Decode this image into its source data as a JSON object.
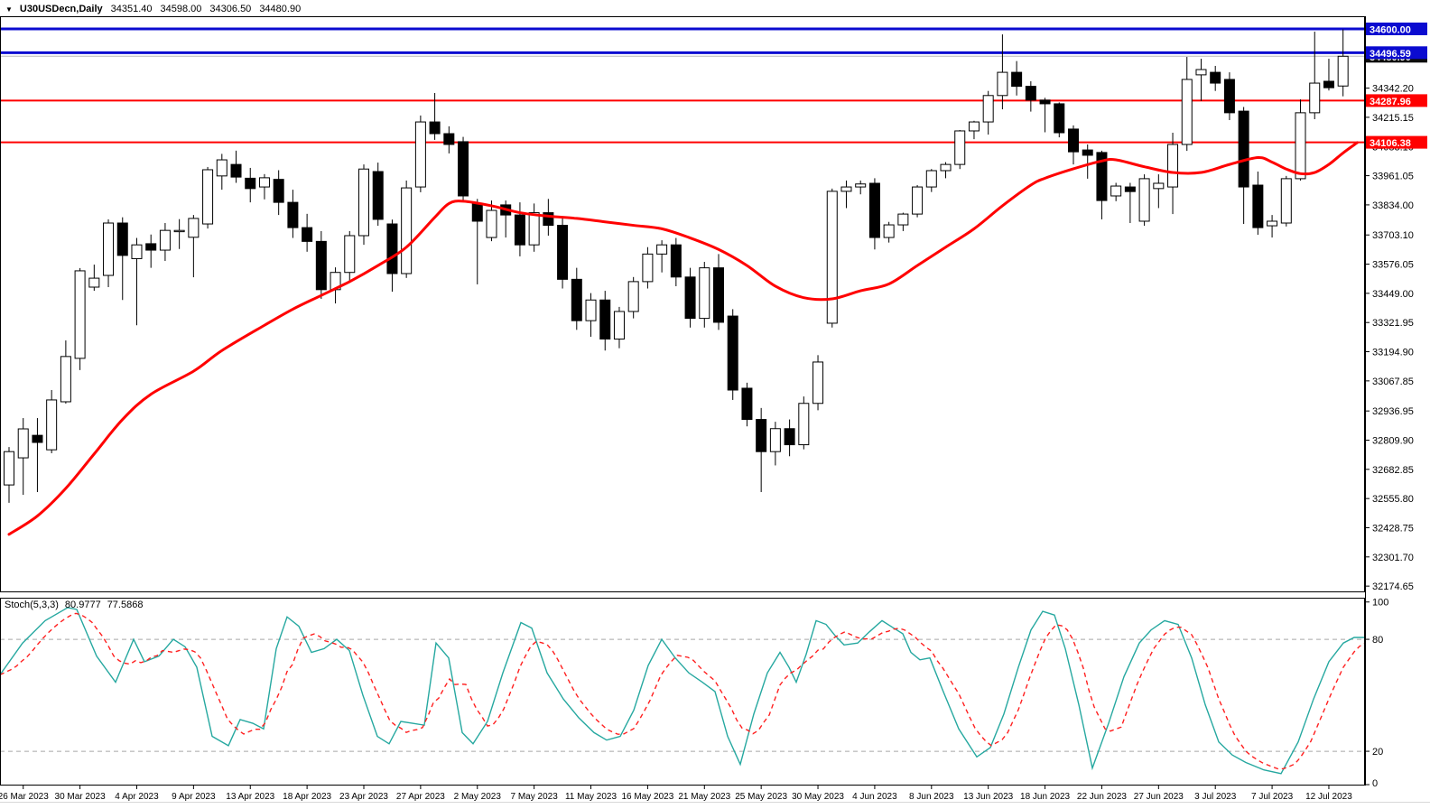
{
  "header": {
    "dropdown_icon": "▼",
    "title": "U30USDecn,Daily",
    "open": "34351.40",
    "high": "34598.00",
    "low": "34306.50",
    "close": "34480.90"
  },
  "indicator": {
    "name": "Stoch(5,3,3)",
    "k_value": "80.9777",
    "d_value": "77.5868",
    "axis_labels": [
      "100",
      "80",
      "20",
      "0"
    ],
    "level_lines": [
      80,
      20
    ],
    "k_color": "#26a8a0",
    "d_color": "#ff2020"
  },
  "price_axis": {
    "ticks": [
      "34342.20",
      "34215.15",
      "34088.10",
      "33961.05",
      "33834.00",
      "33703.10",
      "33576.05",
      "33449.00",
      "33321.95",
      "33194.90",
      "33067.85",
      "32936.95",
      "32809.90",
      "32682.85",
      "32555.80",
      "32428.75",
      "32301.70",
      "32174.65"
    ]
  },
  "time_axis": {
    "labels": [
      "26 Mar 2023",
      "30 Mar 2023",
      "4 Apr 2023",
      "9 Apr 2023",
      "13 Apr 2023",
      "18 Apr 2023",
      "23 Apr 2023",
      "27 Apr 2023",
      "2 May 2023",
      "7 May 2023",
      "11 May 2023",
      "16 May 2023",
      "21 May 2023",
      "25 May 2023",
      "30 May 2023",
      "4 Jun 2023",
      "8 Jun 2023",
      "13 Jun 2023",
      "18 Jun 2023",
      "22 Jun 2023",
      "27 Jun 2023",
      "3 Jul 2023",
      "7 Jul 2023",
      "12 Jul 2023"
    ]
  },
  "colors": {
    "bull_fill": "#ffffff",
    "bear_fill": "#000000",
    "candle_stroke": "#000000",
    "ma": "#ff0000",
    "blue_line": "#0b0bd0",
    "red_line": "#ff0000",
    "price_marker_line": "#b8b8b8",
    "price_marker_bg": "#0d0d0d",
    "frame": "#000000",
    "level_dash": "#a8a8a8"
  },
  "chart_data": {
    "type": "candlestick",
    "symbol": "U30USDecn",
    "timeframe": "Daily",
    "last_bar_ohlc": [
      34351.4,
      34598.0,
      34306.5,
      34480.9
    ],
    "ylim_main": [
      32148,
      34655
    ],
    "candles": [
      [
        32615,
        32780,
        32537,
        32760
      ],
      [
        32733,
        32906,
        32572,
        32859
      ],
      [
        32831,
        32906,
        32584,
        32800
      ],
      [
        32768,
        33028,
        32753,
        32985
      ],
      [
        32977,
        33244,
        32969,
        33174
      ],
      [
        33166,
        33559,
        33115,
        33547
      ],
      [
        33476,
        33574,
        33460,
        33515
      ],
      [
        33527,
        33771,
        33476,
        33755
      ],
      [
        33755,
        33780,
        33420,
        33614
      ],
      [
        33600,
        33690,
        33310,
        33660
      ],
      [
        33665,
        33705,
        33560,
        33637
      ],
      [
        33637,
        33755,
        33590,
        33723
      ],
      [
        33716,
        33772,
        33642,
        33720
      ],
      [
        33693,
        33790,
        33519,
        33775
      ],
      [
        33751,
        33999,
        33731,
        33987
      ],
      [
        33960,
        34056,
        33900,
        34030
      ],
      [
        34010,
        34070,
        33930,
        33955
      ],
      [
        33950,
        33995,
        33845,
        33905
      ],
      [
        33912,
        33968,
        33858,
        33952
      ],
      [
        33945,
        33985,
        33790,
        33845
      ],
      [
        33845,
        33900,
        33690,
        33735
      ],
      [
        33735,
        33795,
        33630,
        33675
      ],
      [
        33675,
        33720,
        33425,
        33465
      ],
      [
        33465,
        33562,
        33405,
        33540
      ],
      [
        33540,
        33720,
        33498,
        33700
      ],
      [
        33700,
        34010,
        33660,
        33990
      ],
      [
        33979,
        34018,
        33743,
        33771
      ],
      [
        33751,
        33770,
        33456,
        33535
      ],
      [
        33535,
        33940,
        33516,
        33908
      ],
      [
        33912,
        34223,
        33889,
        34195
      ],
      [
        34195,
        34321,
        34117,
        34144
      ],
      [
        34144,
        34176,
        34058,
        34097
      ],
      [
        34109,
        34130,
        33849,
        33873
      ],
      [
        33841,
        33860,
        33488,
        33763
      ],
      [
        33692,
        33853,
        33676,
        33810
      ],
      [
        33834,
        33853,
        33692,
        33790
      ],
      [
        33790,
        33845,
        33610,
        33660
      ],
      [
        33660,
        33840,
        33630,
        33800
      ],
      [
        33800,
        33860,
        33700,
        33745
      ],
      [
        33745,
        33780,
        33470,
        33510
      ],
      [
        33510,
        33560,
        33290,
        33330
      ],
      [
        33330,
        33450,
        33260,
        33420
      ],
      [
        33420,
        33460,
        33200,
        33250
      ],
      [
        33250,
        33390,
        33210,
        33370
      ],
      [
        33370,
        33520,
        33340,
        33500
      ],
      [
        33500,
        33650,
        33470,
        33620
      ],
      [
        33620,
        33680,
        33540,
        33660
      ],
      [
        33660,
        33690,
        33480,
        33520
      ],
      [
        33520,
        33560,
        33300,
        33340
      ],
      [
        33340,
        33586,
        33300,
        33560
      ],
      [
        33560,
        33620,
        33290,
        33323
      ],
      [
        33350,
        33380,
        32985,
        33028
      ],
      [
        33036,
        33060,
        32870,
        32900
      ],
      [
        32900,
        32950,
        32584,
        32760
      ],
      [
        32760,
        32890,
        32700,
        32860
      ],
      [
        32860,
        32900,
        32740,
        32790
      ],
      [
        32790,
        33000,
        32770,
        32970
      ],
      [
        32970,
        33180,
        32940,
        33150
      ],
      [
        33319,
        33905,
        33300,
        33893
      ],
      [
        33893,
        33940,
        33820,
        33912
      ],
      [
        33912,
        33940,
        33880,
        33925
      ],
      [
        33928,
        33950,
        33640,
        33692
      ],
      [
        33692,
        33760,
        33670,
        33747
      ],
      [
        33747,
        33800,
        33720,
        33794
      ],
      [
        33794,
        33920,
        33780,
        33912
      ],
      [
        33912,
        33990,
        33890,
        33983
      ],
      [
        33983,
        34020,
        33950,
        34010
      ],
      [
        34010,
        34160,
        33990,
        34156
      ],
      [
        34156,
        34200,
        34120,
        34195
      ],
      [
        34195,
        34330,
        34140,
        34310
      ],
      [
        34310,
        34576,
        34250,
        34411
      ],
      [
        34411,
        34460,
        34310,
        34350
      ],
      [
        34350,
        34372,
        34240,
        34290
      ],
      [
        34290,
        34300,
        34150,
        34274
      ],
      [
        34274,
        34280,
        34128,
        34148
      ],
      [
        34164,
        34180,
        34010,
        34065
      ],
      [
        34073,
        34097,
        33948,
        34050
      ],
      [
        34062,
        34070,
        33771,
        33853
      ],
      [
        33873,
        33930,
        33850,
        33916
      ],
      [
        33912,
        33930,
        33755,
        33892
      ],
      [
        33763,
        33967,
        33743,
        33948
      ],
      [
        33905,
        33967,
        33820,
        33928
      ],
      [
        33912,
        34148,
        33794,
        34097
      ],
      [
        34097,
        34478,
        34069,
        34380
      ],
      [
        34400,
        34470,
        34286,
        34423
      ],
      [
        34411,
        34439,
        34330,
        34364
      ],
      [
        34380,
        34411,
        34203,
        34235
      ],
      [
        34242,
        34260,
        33751,
        33912
      ],
      [
        33920,
        33979,
        33704,
        33735
      ],
      [
        33743,
        33790,
        33692,
        33763
      ],
      [
        33755,
        33960,
        33740,
        33948
      ],
      [
        33948,
        34293,
        33940,
        34235
      ],
      [
        34235,
        34588,
        34207,
        34364
      ],
      [
        34372,
        34470,
        34332,
        34344
      ],
      [
        34351.4,
        34598,
        34306.5,
        34480.9
      ]
    ],
    "ma_line": {
      "name": "moving-average",
      "color": "#ff0000",
      "points_by_bar": [
        [
          0,
          32400
        ],
        [
          2,
          32480
        ],
        [
          4,
          32600
        ],
        [
          6,
          32750
        ],
        [
          8,
          32900
        ],
        [
          10,
          33010
        ],
        [
          13,
          33110
        ],
        [
          15,
          33200
        ],
        [
          18,
          33310
        ],
        [
          20,
          33380
        ],
        [
          22,
          33440
        ],
        [
          24,
          33500
        ],
        [
          26,
          33570
        ],
        [
          28,
          33650
        ],
        [
          30,
          33780
        ],
        [
          31,
          33840
        ],
        [
          32,
          33850
        ],
        [
          34,
          33830
        ],
        [
          36,
          33800
        ],
        [
          38,
          33785
        ],
        [
          40,
          33775
        ],
        [
          42,
          33760
        ],
        [
          44,
          33745
        ],
        [
          46,
          33730
        ],
        [
          48,
          33690
        ],
        [
          50,
          33640
        ],
        [
          52,
          33570
        ],
        [
          54,
          33480
        ],
        [
          56,
          33430
        ],
        [
          58,
          33425
        ],
        [
          60,
          33460
        ],
        [
          62,
          33490
        ],
        [
          64,
          33570
        ],
        [
          66,
          33650
        ],
        [
          68,
          33730
        ],
        [
          70,
          33830
        ],
        [
          72,
          33920
        ],
        [
          73,
          33950
        ],
        [
          75,
          33991
        ],
        [
          77,
          34025
        ],
        [
          78,
          34030
        ],
        [
          80,
          34000
        ],
        [
          82,
          33975
        ],
        [
          84,
          33975
        ],
        [
          86,
          34010
        ],
        [
          88,
          34040
        ],
        [
          89,
          34020
        ],
        [
          90,
          33990
        ],
        [
          91,
          33970
        ],
        [
          92,
          33975
        ],
        [
          93,
          34010
        ],
        [
          94,
          34060
        ],
        [
          95,
          34105
        ]
      ]
    },
    "hlines": [
      {
        "price": 34600.0,
        "label": "34600.00",
        "color": "#0b0bd0",
        "width": 3,
        "label_bg": "#0b0bd0"
      },
      {
        "price": 34496.59,
        "label": "34496.59",
        "color": "#0b0bd0",
        "width": 3,
        "label_bg": "#0b0bd0"
      },
      {
        "price": 34480.9,
        "label": "34480.90",
        "color": "#b8b8b8",
        "width": 1,
        "label_bg": "#0d0d0d"
      },
      {
        "price": 34287.96,
        "label": "34287.96",
        "color": "#ff0000",
        "width": 2,
        "label_bg": "#ff0000"
      },
      {
        "price": 34106.38,
        "label": "34106.38",
        "color": "#ff0000",
        "width": 2,
        "label_bg": "#ff0000"
      }
    ],
    "price_ticks": [
      34342.2,
      34215.15,
      34088.1,
      33961.05,
      33834.0,
      33703.1,
      33576.05,
      33449.0,
      33321.95,
      33194.9,
      33067.85,
      32936.95,
      32809.9,
      32682.85,
      32555.8,
      32428.75,
      32301.7,
      32174.65
    ],
    "stochastic": {
      "type": "line",
      "ylim": [
        0,
        100
      ],
      "levels": [
        80,
        20
      ],
      "k_final": 80.9777,
      "d_final": 77.5868,
      "d_smoothing": 3,
      "k_points": [
        [
          0,
          61
        ],
        [
          25,
          78
        ],
        [
          50,
          90
        ],
        [
          75,
          97
        ],
        [
          85,
          96
        ],
        [
          107,
          71
        ],
        [
          128,
          57
        ],
        [
          148,
          80
        ],
        [
          160,
          68
        ],
        [
          176,
          71
        ],
        [
          192,
          80
        ],
        [
          205,
          76
        ],
        [
          218,
          65
        ],
        [
          235,
          28
        ],
        [
          253,
          23
        ],
        [
          266,
          37
        ],
        [
          280,
          35
        ],
        [
          292,
          32
        ],
        [
          306,
          75
        ],
        [
          318,
          92
        ],
        [
          331,
          87
        ],
        [
          345,
          73
        ],
        [
          359,
          75
        ],
        [
          373,
          80
        ],
        [
          387,
          74
        ],
        [
          402,
          50
        ],
        [
          418,
          28
        ],
        [
          431,
          24
        ],
        [
          444,
          36
        ],
        [
          457,
          35
        ],
        [
          470,
          34
        ],
        [
          483,
          78
        ],
        [
          497,
          70
        ],
        [
          512,
          30
        ],
        [
          524,
          24
        ],
        [
          540,
          36
        ],
        [
          557,
          62
        ],
        [
          577,
          89
        ],
        [
          589,
          86
        ],
        [
          606,
          62
        ],
        [
          624,
          48
        ],
        [
          641,
          38
        ],
        [
          658,
          30
        ],
        [
          672,
          26
        ],
        [
          687,
          28
        ],
        [
          702,
          42
        ],
        [
          718,
          66
        ],
        [
          733,
          80
        ],
        [
          748,
          70
        ],
        [
          763,
          62
        ],
        [
          778,
          57
        ],
        [
          792,
          52
        ],
        [
          806,
          28
        ],
        [
          820,
          13
        ],
        [
          835,
          40
        ],
        [
          850,
          62
        ],
        [
          864,
          73
        ],
        [
          874,
          65
        ],
        [
          882,
          57
        ],
        [
          893,
          72
        ],
        [
          904,
          90
        ],
        [
          915,
          88
        ],
        [
          925,
          82
        ],
        [
          935,
          77
        ],
        [
          950,
          78
        ],
        [
          963,
          84
        ],
        [
          977,
          90
        ],
        [
          990,
          86
        ],
        [
          1000,
          83
        ],
        [
          1009,
          73
        ],
        [
          1019,
          69
        ],
        [
          1030,
          70
        ],
        [
          1044,
          53
        ],
        [
          1062,
          32
        ],
        [
          1082,
          17
        ],
        [
          1097,
          22
        ],
        [
          1112,
          40
        ],
        [
          1128,
          65
        ],
        [
          1142,
          85
        ],
        [
          1155,
          95
        ],
        [
          1168,
          93
        ],
        [
          1180,
          75
        ],
        [
          1195,
          45
        ],
        [
          1210,
          11
        ],
        [
          1228,
          35
        ],
        [
          1245,
          60
        ],
        [
          1262,
          78
        ],
        [
          1275,
          85
        ],
        [
          1290,
          90
        ],
        [
          1305,
          88
        ],
        [
          1320,
          70
        ],
        [
          1335,
          45
        ],
        [
          1350,
          25
        ],
        [
          1365,
          18
        ],
        [
          1380,
          14
        ],
        [
          1400,
          10
        ],
        [
          1419,
          8
        ],
        [
          1438,
          25
        ],
        [
          1455,
          48
        ],
        [
          1472,
          68
        ],
        [
          1488,
          78
        ],
        [
          1500,
          81
        ],
        [
          1512,
          81
        ]
      ]
    }
  }
}
